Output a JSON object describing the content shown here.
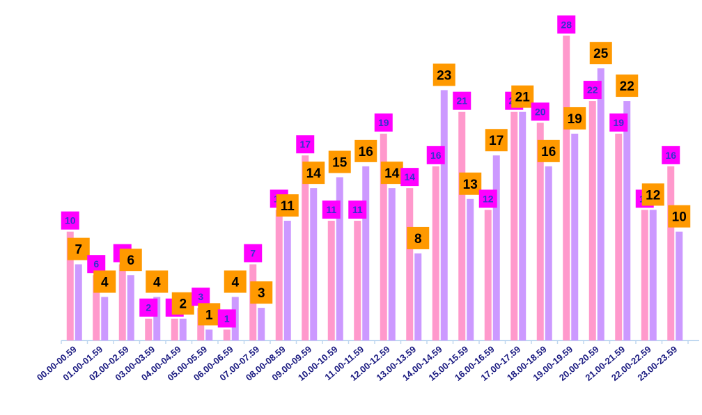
{
  "chart_data": {
    "type": "bar",
    "title": "",
    "xlabel": "",
    "ylabel": "",
    "ylim": [
      0,
      30
    ],
    "grid": false,
    "legend": "none",
    "categories": [
      "00.00-00.59",
      "01.00-01.59",
      "02.00-02.59",
      "03.00-03.59",
      "04.00-04.59",
      "05.00-05.59",
      "06.00-06.59",
      "07.00-07.59",
      "08.00-08.59",
      "09.00-09.59",
      "10.00-10.59",
      "11.00-11.59",
      "12.00-12.59",
      "13.00-13.59",
      "14.00-14.59",
      "15.00-15.59",
      "16.00-16.59",
      "17.00-17.59",
      "18.00-18.59",
      "19.00-19.59",
      "20.00-20.59",
      "21.00-21.59",
      "22.00-22.59",
      "23.00-23.59"
    ],
    "series": [
      {
        "color": "#ff99cc",
        "label_bg": "#ff00ff",
        "label_color": "#3333cc",
        "values": [
          10,
          6,
          7,
          2,
          2,
          3,
          1,
          7,
          12,
          17,
          11,
          11,
          19,
          14,
          16,
          21,
          12,
          21,
          20,
          28,
          22,
          19,
          12,
          16
        ]
      },
      {
        "color": "#cc99ff",
        "label_bg": "#ff9900",
        "label_color": "#000000",
        "values": [
          7,
          4,
          6,
          4,
          2,
          1,
          4,
          3,
          11,
          14,
          15,
          16,
          14,
          8,
          23,
          13,
          17,
          21,
          16,
          19,
          25,
          22,
          12,
          10
        ]
      }
    ],
    "axis_color": "#c0d8f0"
  }
}
